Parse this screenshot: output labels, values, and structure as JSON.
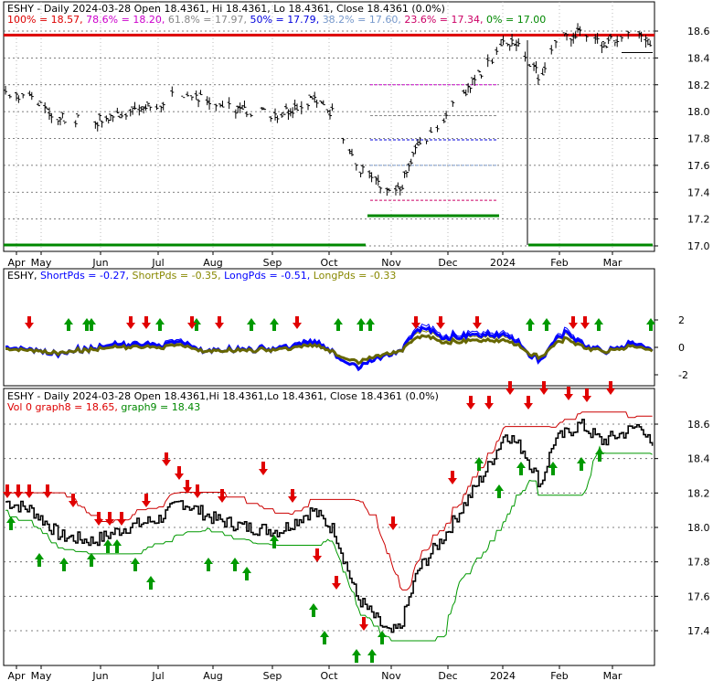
{
  "colors": {
    "up": "#009900",
    "down": "#e00000",
    "fib_red": "#dd0000",
    "fib_green": "#008800",
    "dotted": "#333333",
    "blue": "#0000ff",
    "olive": "#888800",
    "dark_olive": "#666600",
    "grid": "#999999"
  },
  "panel1": {
    "title": "ESHY - Daily 2024-03-28 Open 18.4361, Hi 18.4361, Lo 18.4361, Close 18.4361 (0.0%)",
    "fib": [
      {
        "pct": "100%",
        "val": "18.57",
        "color": "#dd0000"
      },
      {
        "pct": "78.6%",
        "val": "18.20",
        "color": "#cc00cc"
      },
      {
        "pct": "61.8%",
        "val": "17.97",
        "color": "#888888"
      },
      {
        "pct": "50%",
        "val": "17.79",
        "color": "#0000dd"
      },
      {
        "pct": "38.2%",
        "val": "17.60",
        "color": "#7799cc"
      },
      {
        "pct": "23.6%",
        "val": "17.34",
        "color": "#cc0066"
      },
      {
        "pct": "0%",
        "val": "17.00",
        "color": "#008800"
      }
    ],
    "y_ticks": [
      "18.6",
      "18.4",
      "18.2",
      "18.0",
      "17.8",
      "17.6",
      "17.4",
      "17.2",
      "17.0"
    ],
    "x_ticks": [
      "Apr",
      "May",
      "Jun",
      "Jul",
      "Aug",
      "Sep",
      "Oct",
      "Nov",
      "Dec",
      "2024",
      "Feb",
      "Mar"
    ]
  },
  "panel2": {
    "title": "ESHY",
    "legend": [
      {
        "name": "ShortPds",
        "val": "-0.27",
        "color": "#0000ff"
      },
      {
        "name": "ShortPds",
        "val": "-0.35",
        "color": "#888800"
      },
      {
        "name": "LongPds",
        "val": "-0.51",
        "color": "#0000ff"
      },
      {
        "name": "LongPds",
        "val": "-0.33",
        "color": "#888800"
      }
    ],
    "y_ticks": [
      "2",
      "0",
      "-2"
    ]
  },
  "panel3": {
    "title": "ESHY - Daily 2024-03-28 Open 18.4361,Hi 18.4361,Lo 18.4361, Close 18.4361 (0.0%)",
    "line2": "Vol 0",
    "graph8": "graph8 = 18.65",
    "graph9": "graph9 = 18.43",
    "y_ticks": [
      "18.6",
      "18.4",
      "18.2",
      "18.0",
      "17.8",
      "17.6",
      "17.4"
    ],
    "x_ticks": [
      "Apr",
      "May",
      "Jun",
      "Jul",
      "Aug",
      "Sep",
      "Oct",
      "Nov",
      "Dec",
      "2024",
      "Feb",
      "Mar"
    ]
  },
  "chart_data": {
    "type": "line",
    "title": "ESHY - Daily 2024-03-28",
    "x": [
      "Apr",
      "May",
      "Jun",
      "Jul",
      "Aug",
      "Sep",
      "Oct",
      "Nov",
      "Dec",
      "2024",
      "Feb",
      "Mar"
    ],
    "series": [
      {
        "name": "Close",
        "values": [
          18.15,
          18.0,
          18.05,
          18.1,
          18.02,
          18.05,
          17.45,
          17.75,
          18.5,
          18.45,
          18.55,
          18.44
        ]
      }
    ],
    "ylim": [
      17.0,
      18.6
    ]
  }
}
